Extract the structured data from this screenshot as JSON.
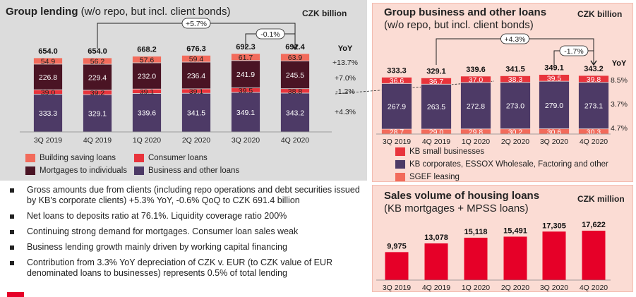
{
  "panel1": {
    "title": "Group lending",
    "subtitle": " (w/o repo, but incl. client bonds)",
    "unit": "CZK billion",
    "yoy_header": "YoY",
    "growth_yoy": "+5.7%",
    "growth_qoq": "-0.1%",
    "legend": [
      "Building saving loans",
      "Consumer loans",
      "Mortgages to individuals",
      "Business and other loans"
    ]
  },
  "panel2": {
    "title": "Group business and other loans",
    "subtitle": "(w/o repo, but incl. client bonds)",
    "unit": "CZK billion",
    "yoy_header": "YoY",
    "growth_yoy": "+4.3%",
    "growth_qoq": "-1.7%",
    "legend": [
      "KB small businesses",
      "KB corporates, ESSOX Wholesale, Factoring and other",
      "SGEF leasing"
    ]
  },
  "panel3": {
    "title": "Sales volume of housing loans",
    "subtitle": "(KB mortgages + MPSS loans)",
    "unit": "CZK million"
  },
  "bullets": [
    "Gross amounts due from clients (including repo operations and debt securities issued by KB's corporate clients) +5.3% YoY, -0.6% QoQ to CZK 691.4 billion",
    "Net loans to deposits ratio at 76.1%. Liquidity coverage ratio 200%",
    "Continuing strong demand for mortgages. Consumer loan sales weak",
    "Business lending growth mainly driven by working capital financing",
    "Contribution from 3.3% YoY depreciation of CZK v. EUR (to CZK value of EUR denominated loans to businesses) represents 0.5% of total lending"
  ],
  "colors": {
    "building_saving": "#f26b5b",
    "consumer": "#e8343c",
    "mortgages": "#4a1424",
    "business": "#4d3a66",
    "sgef": "#f26b5b",
    "small_business": "#e8343c",
    "corporates": "#4d3a66",
    "sales_bar": "#e60028"
  },
  "chart_data": [
    {
      "type": "bar",
      "stacked": true,
      "title": "Group lending",
      "categories": [
        "3Q 2019",
        "4Q 2019",
        "1Q 2020",
        "2Q 2020",
        "3Q 2020",
        "4Q 2020"
      ],
      "series": [
        {
          "name": "Business and other loans",
          "values": [
            333.3,
            329.1,
            339.6,
            341.5,
            349.1,
            343.2
          ]
        },
        {
          "name": "Consumer loans",
          "values": [
            39.0,
            39.2,
            39.1,
            39.1,
            39.5,
            38.8
          ]
        },
        {
          "name": "Mortgages to individuals",
          "values": [
            226.8,
            229.4,
            232.0,
            236.4,
            241.9,
            245.5
          ]
        },
        {
          "name": "Building saving loans",
          "values": [
            54.9,
            56.2,
            57.6,
            59.4,
            61.7,
            63.9
          ]
        }
      ],
      "totals": [
        654.0,
        654.0,
        668.2,
        676.3,
        692.3,
        691.4
      ],
      "yoy": [
        "+13.7%",
        "+7.0%",
        "-1.2%",
        "+4.3%"
      ]
    },
    {
      "type": "bar",
      "stacked": true,
      "title": "Group business and other loans",
      "categories": [
        "3Q 2019",
        "4Q 2019",
        "1Q 2020",
        "2Q 2020",
        "3Q 2020",
        "4Q 2020"
      ],
      "series": [
        {
          "name": "SGEF leasing",
          "values": [
            28.7,
            29.0,
            29.8,
            30.2,
            30.6,
            30.3
          ]
        },
        {
          "name": "KB corporates, ESSOX Wholesale, Factoring and other",
          "values": [
            267.9,
            263.5,
            272.8,
            273.0,
            279.0,
            273.1
          ]
        },
        {
          "name": "KB small businesses",
          "values": [
            36.6,
            36.7,
            37.0,
            38.3,
            39.5,
            39.8
          ]
        }
      ],
      "totals": [
        333.3,
        329.1,
        339.6,
        341.5,
        349.1,
        343.2
      ],
      "yoy": [
        "8.5%",
        "3.7%",
        "4.7%"
      ]
    },
    {
      "type": "bar",
      "title": "Sales volume of housing loans",
      "categories": [
        "3Q 2019",
        "4Q 2019",
        "1Q 2020",
        "2Q 2020",
        "3Q 2020",
        "4Q 2020"
      ],
      "values": [
        9975,
        13078,
        15118,
        15491,
        17305,
        17622
      ],
      "labels": [
        "9,975",
        "13,078",
        "15,118",
        "15,491",
        "17,305",
        "17,622"
      ]
    }
  ]
}
